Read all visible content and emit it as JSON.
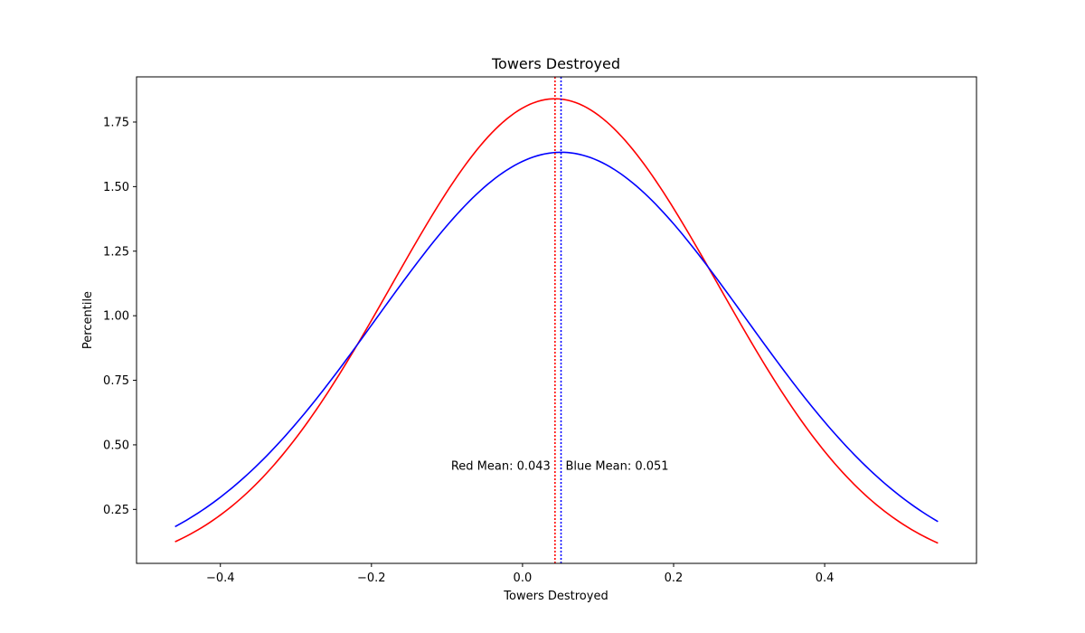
{
  "chart_data": {
    "type": "line",
    "title": "Towers Destroyed",
    "xlabel": "Towers Destroyed",
    "ylabel": "Percentile",
    "xlim": [
      -0.511,
      0.601
    ],
    "ylim": [
      0.041,
      1.925
    ],
    "x_ticks": [
      -0.4,
      -0.2,
      0.0,
      0.2,
      0.4
    ],
    "x_tick_labels": [
      "−0.4",
      "−0.2",
      "0.0",
      "0.2",
      "0.4"
    ],
    "y_ticks": [
      0.25,
      0.5,
      0.75,
      1.0,
      1.25,
      1.5,
      1.75
    ],
    "y_tick_labels": [
      "0.25",
      "0.50",
      "0.75",
      "1.00",
      "1.25",
      "1.50",
      "1.75"
    ],
    "grid": false,
    "legend": "none",
    "x_range": [
      -0.46,
      0.55
    ],
    "series": [
      {
        "key": "red",
        "color": "#ff0000",
        "mean": 0.043,
        "std": 0.2168
      },
      {
        "key": "blue",
        "color": "#0000ff",
        "mean": 0.051,
        "std": 0.2443
      }
    ],
    "mean_lines": [
      {
        "x": 0.043,
        "color": "#ff0000"
      },
      {
        "x": 0.051,
        "color": "#0000ff"
      }
    ],
    "annotations": [
      {
        "text": "Red Mean: 0.043",
        "x": 0.043,
        "y": 0.42,
        "align": "end"
      },
      {
        "text": "Blue Mean: 0.051",
        "x": 0.051,
        "y": 0.42,
        "align": "start"
      }
    ]
  }
}
